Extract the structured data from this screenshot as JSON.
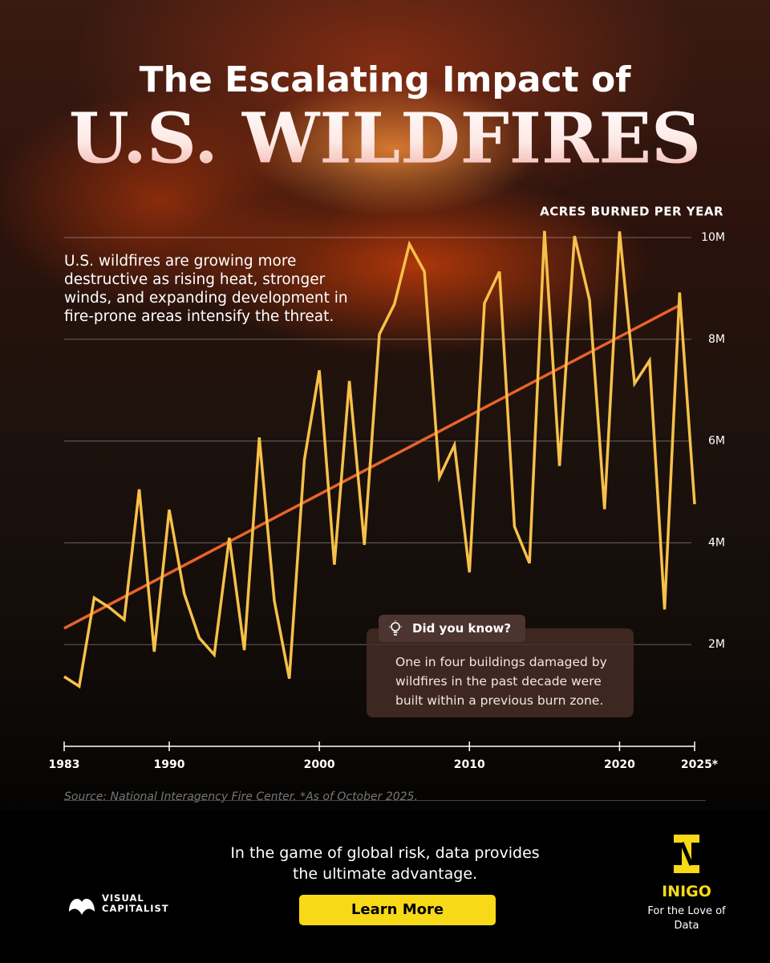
{
  "chart_data": {
    "type": "line",
    "title": "The Escalating Impact of",
    "title_main": "U.S. WILDFIRES",
    "subtitle": "U.S. wildfires are growing more destructive as rising heat, stronger winds, and expanding development in fire-prone areas intensify the threat.",
    "y_label": "ACRES BURNED PER YEAR",
    "x": [
      1983,
      1984,
      1985,
      1986,
      1987,
      1988,
      1989,
      1990,
      1991,
      1992,
      1993,
      1994,
      1995,
      1996,
      1997,
      1998,
      1999,
      2000,
      2001,
      2002,
      2003,
      2004,
      2005,
      2006,
      2007,
      2008,
      2009,
      2010,
      2011,
      2012,
      2013,
      2014,
      2015,
      2016,
      2017,
      2018,
      2019,
      2020,
      2021,
      2022,
      2023,
      2024,
      2025
    ],
    "series": [
      {
        "color": "#f7c04a",
        "values": [
          1.37,
          1.18,
          2.92,
          2.73,
          2.49,
          5.05,
          1.86,
          4.65,
          3.0,
          2.13,
          1.8,
          4.1,
          1.89,
          6.07,
          2.86,
          1.33,
          5.63,
          7.39,
          3.57,
          7.18,
          3.96,
          8.1,
          8.69,
          9.87,
          9.33,
          5.29,
          5.92,
          3.42,
          8.71,
          9.33,
          4.32,
          3.6,
          10.13,
          5.51,
          10.03,
          8.77,
          4.66,
          10.12,
          7.13,
          7.58,
          2.69,
          8.92,
          4.76
        ]
      }
    ],
    "trend": {
      "color": "#e8632a",
      "x": [
        1983,
        2024
      ],
      "values": [
        2.32,
        8.67
      ]
    },
    "xlim": [
      1983,
      2025
    ],
    "ylim": [
      0,
      10
    ],
    "xticks": [
      1983,
      1990,
      2000,
      2010,
      2020,
      {
        "value": 2025,
        "label": "2025*"
      }
    ],
    "yticks": [
      {
        "value": 2,
        "label": "2M"
      },
      {
        "value": 4,
        "label": "4M"
      },
      {
        "value": 6,
        "label": "6M"
      },
      {
        "value": 8,
        "label": "8M"
      },
      {
        "value": 10,
        "label": "10M"
      }
    ],
    "grid": true,
    "callout": {
      "title": "Did you know?",
      "text": "One in four buildings damaged by wildfires in the past decade were built within a previous burn zone."
    },
    "source": "Source: National Interagency Fire Center. *As of October 2025."
  },
  "footer": {
    "tagline": "In the game of global risk, data provides the ultimate advantage.",
    "button": "Learn More",
    "brand": "VISUAL CAPITALIST",
    "partner": "INIGO",
    "partner_tagline": "For the Love of Data"
  }
}
